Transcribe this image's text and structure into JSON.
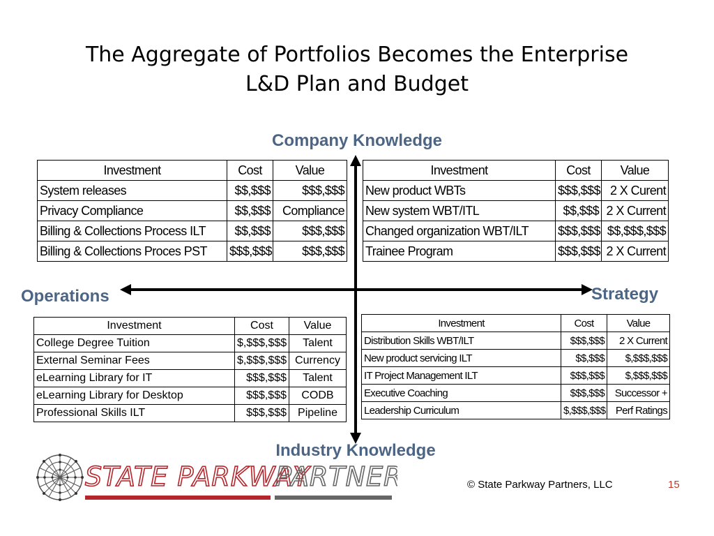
{
  "slide": {
    "title_line1": "The Aggregate of Portfolios Becomes the Enterprise",
    "title_line2": "L&D Plan and Budget",
    "page_number": "15",
    "copyright": "© State Parkway Partners, LLC"
  },
  "axes": {
    "top": "Company Knowledge",
    "left": "Operations",
    "right": "Strategy",
    "bottom": "Industry Knowledge"
  },
  "logo": {
    "text_part1": "STATE PARKWAY",
    "text_part2": "PARTNERS",
    "red": "#b5252b",
    "gray": "#666666"
  },
  "colors": {
    "axis_label": "#4d6584",
    "page_number": "#c0392b"
  },
  "tables": {
    "top_left": {
      "headers": [
        "Investment",
        "Cost",
        "Value"
      ],
      "rows": [
        [
          "System releases",
          "$$,$$$",
          "$$$,$$$"
        ],
        [
          "Privacy Compliance",
          "$$,$$$",
          "Compliance"
        ],
        [
          "Billing & Collections Process ILT",
          "$$,$$$",
          "$$$,$$$"
        ],
        [
          "Billing & Collections Proces PST",
          "$$$,$$$",
          "$$$,$$$"
        ]
      ]
    },
    "top_right": {
      "headers": [
        "Investment",
        "Cost",
        "Value"
      ],
      "rows": [
        [
          "New product WBTs",
          "$$$,$$$",
          "2 X Curent"
        ],
        [
          "New system WBT/ITL",
          "$$,$$$",
          "2 X Current"
        ],
        [
          "Changed organization WBT/ILT",
          "$$$,$$$",
          "$$,$$$,$$$"
        ],
        [
          "Trainee Program",
          "$$$,$$$",
          "2 X Current"
        ]
      ]
    },
    "bottom_left": {
      "headers": [
        "Investment",
        "Cost",
        "Value"
      ],
      "rows": [
        [
          "College Degree Tuition",
          "$,$$$,$$$",
          "Talent"
        ],
        [
          "External Seminar Fees",
          "$,$$$,$$$",
          "Currency"
        ],
        [
          "eLearning Library for IT",
          "$$$,$$$",
          "Talent"
        ],
        [
          "eLearning Library for Desktop",
          "$$$,$$$",
          "CODB"
        ],
        [
          "Professional Skills ILT",
          "$$$,$$$",
          "Pipeline"
        ]
      ]
    },
    "bottom_right": {
      "headers": [
        "Investment",
        "Cost",
        "Value"
      ],
      "rows": [
        [
          "Distribution Skills WBT/ILT",
          "$$$,$$$",
          "2 X Current"
        ],
        [
          "New product servicing ILT",
          "$$,$$$",
          "$,$$$,$$$"
        ],
        [
          "IT Project Management ILT",
          "$$$,$$$",
          "$,$$$,$$$"
        ],
        [
          "Executive Coaching",
          "$$$,$$$",
          "Successor +"
        ],
        [
          "Leadership Curriculum",
          "$,$$$,$$$",
          "Perf Ratings"
        ]
      ]
    }
  }
}
